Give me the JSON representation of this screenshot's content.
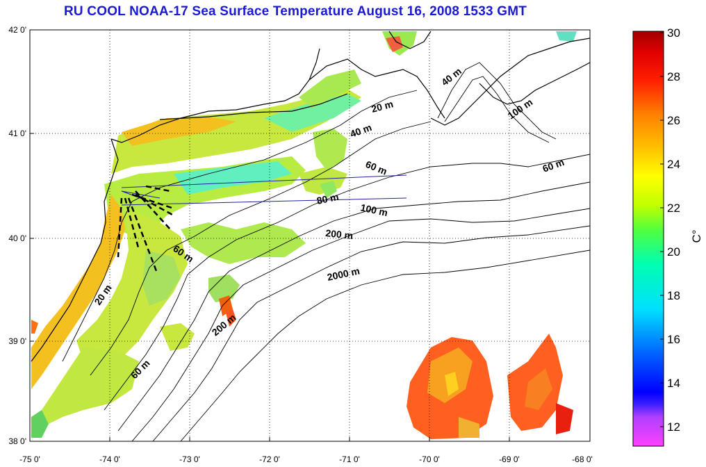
{
  "title": "RU COOL  NOAA-17 Sea Surface Temperature August 16, 2008 1533 GMT",
  "map": {
    "lon_range": [
      -75,
      -68
    ],
    "lat_range": [
      38,
      42
    ],
    "lon_ticks": [
      "-75 0'",
      "-74 0'",
      "-73 0'",
      "-72 0'",
      "-71 0'",
      "-70 0'",
      "-69 0'",
      "-68 0'"
    ],
    "lat_ticks": [
      "38 0'",
      "39 0'",
      "40 0'",
      "41 0'",
      "42 0'"
    ],
    "grid": "dotted"
  },
  "isobath_labels": [
    "20 m",
    "40 m",
    "40 m",
    "100 m",
    "60 m",
    "60 m",
    "80 m",
    "100 m",
    "200 m",
    "2000 m",
    "60 m",
    "20 m",
    "200 m",
    "60 m"
  ],
  "colorbar": {
    "unit_label": "C°",
    "ticks": [
      "12",
      "14",
      "16",
      "18",
      "20",
      "22",
      "24",
      "26",
      "28",
      "30"
    ],
    "range": [
      11,
      30
    ],
    "colors": [
      "#ff40ff",
      "#b040ff",
      "#0000ff",
      "#0060ff",
      "#00c0ff",
      "#00ffd0",
      "#00ff60",
      "#90ff00",
      "#e8ff00",
      "#ffd000",
      "#ff9000",
      "#ff4000",
      "#ff0000",
      "#a00000"
    ]
  }
}
